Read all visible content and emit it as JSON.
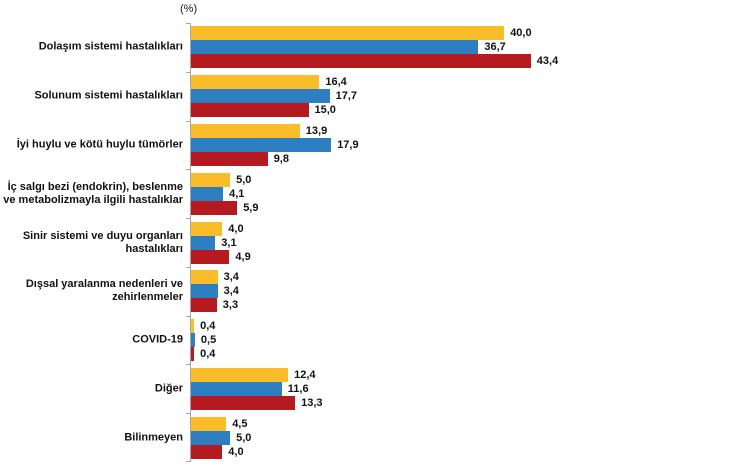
{
  "chart": {
    "unit_label": "(%)"
  },
  "chart_data": {
    "type": "bar",
    "orientation": "horizontal",
    "title": "",
    "xlabel": "(%)",
    "ylabel": "",
    "xlim": [
      0,
      45
    ],
    "grid": false,
    "legend": "none",
    "categories": [
      "Dolaşım sistemi hastalıkları",
      "Solunum sistemi hastalıkları",
      "İyi huylu ve kötü huylu tümörler",
      "İç salgı bezi (endokrin), beslenme\nve metabolizmayla ilgili hastalıklar",
      "Sinir sistemi ve duyu organları\nhastalıkları",
      "Dışsal yaralanma nedenleri ve\nzehirlenmeler",
      "COVID-19",
      "Diğer",
      "Bilinmeyen"
    ],
    "series": [
      {
        "name": "series-yellow",
        "color": "#FBBC29",
        "values": [
          40.0,
          16.4,
          13.9,
          5.0,
          4.0,
          3.4,
          0.4,
          12.4,
          4.5
        ],
        "labels": [
          "40,0",
          "16,4",
          "13,9",
          "5,0",
          "4,0",
          "3,4",
          "0,4",
          "12,4",
          "4,5"
        ]
      },
      {
        "name": "series-blue",
        "color": "#2E7EC2",
        "values": [
          36.7,
          17.7,
          17.9,
          4.1,
          3.1,
          3.4,
          0.5,
          11.6,
          5.0
        ],
        "labels": [
          "36,7",
          "17,7",
          "17,9",
          "4,1",
          "3,1",
          "3,4",
          "0,5",
          "11,6",
          "5,0"
        ]
      },
      {
        "name": "series-red",
        "color": "#B41A1F",
        "values": [
          43.4,
          15.0,
          9.8,
          5.9,
          4.9,
          3.3,
          0.4,
          13.3,
          4.0
        ],
        "labels": [
          "43,4",
          "15,0",
          "9,8",
          "5,9",
          "4,9",
          "3,3",
          "0,4",
          "13,3",
          "4,0"
        ]
      }
    ]
  }
}
